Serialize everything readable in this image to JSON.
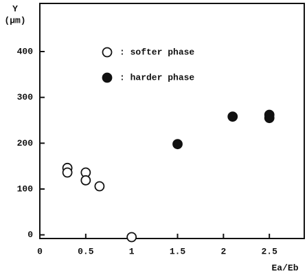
{
  "chart_data": {
    "type": "scatter",
    "y_label": "Y",
    "y_unit": "(µm)",
    "x_label": "Ea/Eb",
    "xlim": [
      0,
      2.88
    ],
    "ylim": [
      -8,
      505
    ],
    "xticks": [
      0,
      0.5,
      1,
      1.5,
      2,
      2.5
    ],
    "yticks": [
      0,
      100,
      200,
      300,
      400
    ],
    "series": [
      {
        "name": ": softer phase",
        "color": "#111111",
        "marker": "open",
        "x": [
          0.3,
          0.3,
          0.5,
          0.5,
          0.65,
          1
        ],
        "values": [
          146,
          136,
          136,
          119,
          106,
          -5
        ]
      },
      {
        "name": ": harder phase",
        "color": "#111111",
        "marker": "filled",
        "x": [
          1.5,
          2.1,
          2.5,
          2.5
        ],
        "values": [
          198,
          258,
          262,
          255
        ]
      }
    ]
  }
}
